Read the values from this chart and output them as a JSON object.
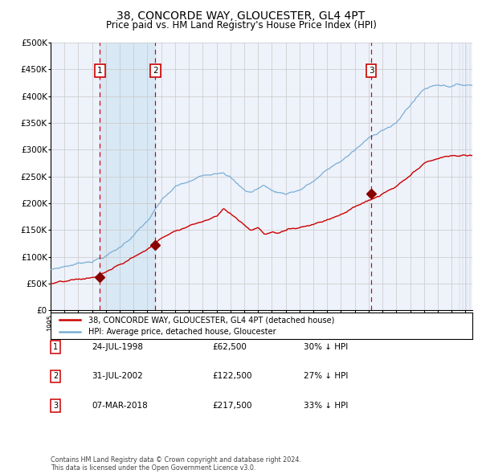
{
  "title": "38, CONCORDE WAY, GLOUCESTER, GL4 4PT",
  "subtitle": "Price paid vs. HM Land Registry's House Price Index (HPI)",
  "title_fontsize": 10,
  "subtitle_fontsize": 8.5,
  "ylim": [
    0,
    500000
  ],
  "yticks": [
    0,
    50000,
    100000,
    150000,
    200000,
    250000,
    300000,
    350000,
    400000,
    450000,
    500000
  ],
  "ytick_labels": [
    "£0",
    "£50K",
    "£100K",
    "£150K",
    "£200K",
    "£250K",
    "£300K",
    "£350K",
    "£400K",
    "£450K",
    "£500K"
  ],
  "background_color": "#ffffff",
  "plot_bg_color": "#eef2fa",
  "grid_color": "#c8c8c8",
  "sale_color": "#cc0000",
  "hpi_color": "#7aaed6",
  "highlight_bg_color": "#d8e8f4",
  "vline_color": "#cc0000",
  "sale_marker_color": "#880000",
  "purchases": [
    {
      "date_num": 1998.57,
      "price": 62500,
      "label": "1"
    },
    {
      "date_num": 2002.58,
      "price": 122500,
      "label": "2"
    },
    {
      "date_num": 2018.18,
      "price": 217500,
      "label": "3"
    }
  ],
  "legend_sale_label": "38, CONCORDE WAY, GLOUCESTER, GL4 4PT (detached house)",
  "legend_hpi_label": "HPI: Average price, detached house, Gloucester",
  "table_rows": [
    {
      "num": "1",
      "date": "24-JUL-1998",
      "price": "£62,500",
      "pct": "30% ↓ HPI"
    },
    {
      "num": "2",
      "date": "31-JUL-2002",
      "price": "£122,500",
      "pct": "27% ↓ HPI"
    },
    {
      "num": "3",
      "date": "07-MAR-2018",
      "price": "£217,500",
      "pct": "33% ↓ HPI"
    }
  ],
  "footnote": "Contains HM Land Registry data © Crown copyright and database right 2024.\nThis data is licensed under the Open Government Licence v3.0.",
  "xmin": 1995.0,
  "xmax": 2025.5,
  "hpi_keypoints": [
    [
      1995.0,
      75000
    ],
    [
      1996.0,
      82000
    ],
    [
      1997.0,
      88000
    ],
    [
      1998.0,
      95000
    ],
    [
      1999.0,
      105000
    ],
    [
      2000.0,
      120000
    ],
    [
      2001.0,
      145000
    ],
    [
      2002.0,
      170000
    ],
    [
      2003.0,
      205000
    ],
    [
      2004.0,
      230000
    ],
    [
      2005.0,
      238000
    ],
    [
      2006.0,
      248000
    ],
    [
      2007.0,
      258000
    ],
    [
      2007.5,
      263000
    ],
    [
      2008.0,
      255000
    ],
    [
      2008.5,
      240000
    ],
    [
      2009.0,
      228000
    ],
    [
      2009.5,
      225000
    ],
    [
      2010.0,
      232000
    ],
    [
      2010.5,
      238000
    ],
    [
      2011.0,
      228000
    ],
    [
      2011.5,
      225000
    ],
    [
      2012.0,
      224000
    ],
    [
      2013.0,
      232000
    ],
    [
      2014.0,
      248000
    ],
    [
      2015.0,
      268000
    ],
    [
      2016.0,
      285000
    ],
    [
      2017.0,
      305000
    ],
    [
      2018.0,
      325000
    ],
    [
      2019.0,
      345000
    ],
    [
      2020.0,
      355000
    ],
    [
      2021.0,
      390000
    ],
    [
      2022.0,
      420000
    ],
    [
      2023.0,
      430000
    ],
    [
      2024.0,
      430000
    ],
    [
      2025.0,
      432000
    ]
  ],
  "prop_keypoints": [
    [
      1995.0,
      50000
    ],
    [
      1996.0,
      52000
    ],
    [
      1997.0,
      54000
    ],
    [
      1998.0,
      57000
    ],
    [
      1998.57,
      62500
    ],
    [
      1999.0,
      68000
    ],
    [
      2000.0,
      80000
    ],
    [
      2001.0,
      95000
    ],
    [
      2002.0,
      110000
    ],
    [
      2002.58,
      122500
    ],
    [
      2003.0,
      130000
    ],
    [
      2004.0,
      148000
    ],
    [
      2005.0,
      158000
    ],
    [
      2006.0,
      168000
    ],
    [
      2007.0,
      180000
    ],
    [
      2007.5,
      195000
    ],
    [
      2008.0,
      185000
    ],
    [
      2008.5,
      175000
    ],
    [
      2009.0,
      165000
    ],
    [
      2009.5,
      155000
    ],
    [
      2010.0,
      160000
    ],
    [
      2010.5,
      148000
    ],
    [
      2011.0,
      152000
    ],
    [
      2011.5,
      150000
    ],
    [
      2012.0,
      155000
    ],
    [
      2013.0,
      162000
    ],
    [
      2014.0,
      170000
    ],
    [
      2015.0,
      180000
    ],
    [
      2016.0,
      192000
    ],
    [
      2017.0,
      205000
    ],
    [
      2018.0,
      218000
    ],
    [
      2018.18,
      217500
    ],
    [
      2019.0,
      228000
    ],
    [
      2020.0,
      240000
    ],
    [
      2021.0,
      258000
    ],
    [
      2022.0,
      278000
    ],
    [
      2023.0,
      288000
    ],
    [
      2024.0,
      292000
    ],
    [
      2025.0,
      293000
    ]
  ]
}
